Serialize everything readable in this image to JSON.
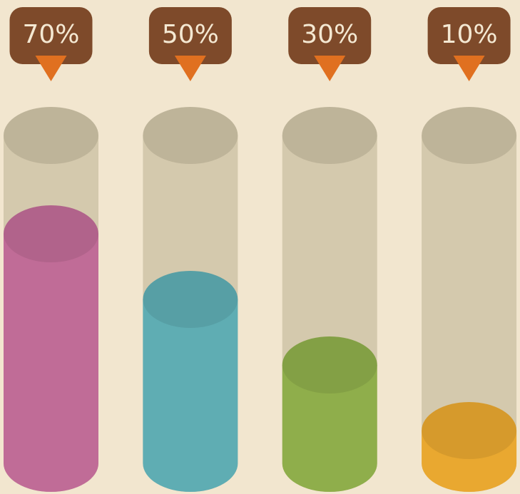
{
  "chart_data": {
    "type": "cylinder",
    "values": [
      70,
      50,
      30,
      10
    ],
    "value_labels": [
      "70%",
      "50%",
      "30%",
      "10%"
    ],
    "colors": [
      "#c06c97",
      "#5fadb3",
      "#8fae4b",
      "#e9a830"
    ],
    "ylim": [
      0,
      100
    ]
  }
}
